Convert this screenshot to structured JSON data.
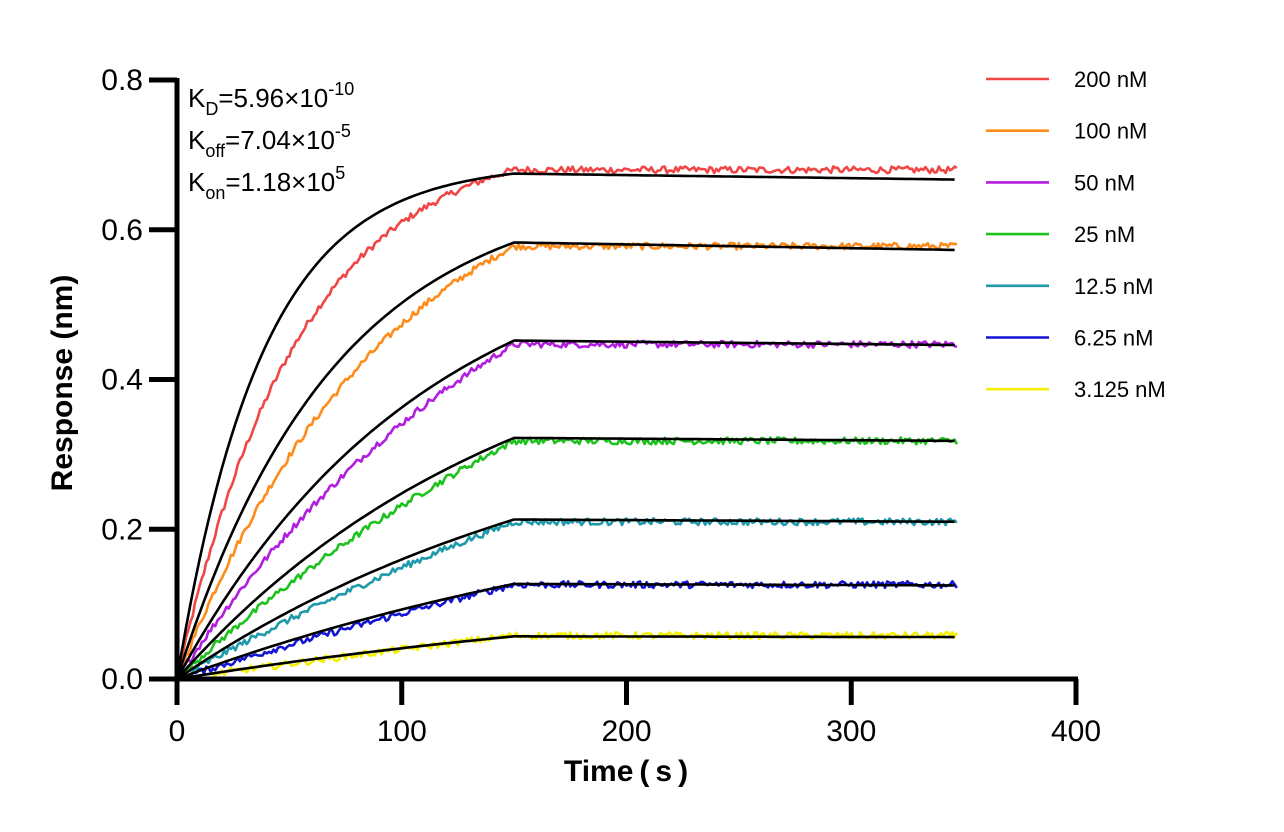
{
  "chart_data": {
    "type": "line",
    "xlabel": "Time ( s )",
    "ylabel": "Response (nm)",
    "xlim": [
      0,
      400
    ],
    "ylim": [
      0,
      0.8
    ],
    "x_ticks": [
      "0",
      "100",
      "200",
      "300",
      "400"
    ],
    "y_ticks": [
      "0.0",
      "0.2",
      "0.4",
      "0.6",
      "0.8"
    ],
    "grid": false,
    "legend_position": "top-right",
    "association_end_s": 150,
    "time_end_s": 347,
    "annotations": [
      {
        "base": "K",
        "sub": "D",
        "text": "=5.96×10",
        "sup": "-10"
      },
      {
        "base": "K",
        "sub": "off",
        "text": "=7.04×10",
        "sup": "-5"
      },
      {
        "base": "K",
        "sub": "on",
        "text": "=1.18×10",
        "sup": "5"
      }
    ],
    "series": [
      {
        "name": "200 nM",
        "color": "#f04646",
        "plateau": 0.68,
        "fit_plateau": 0.675,
        "tau": 55,
        "fit_tau": 38,
        "fit_end": 0.667
      },
      {
        "name": "100 nM",
        "color": "#ff8c1a",
        "plateau": 0.578,
        "fit_plateau": 0.583,
        "tau": 95,
        "fit_tau": 70,
        "fit_end": 0.573
      },
      {
        "name": "50 nM",
        "color": "#b21ee0",
        "plateau": 0.447,
        "fit_plateau": 0.452,
        "tau": 160,
        "fit_tau": 110,
        "fit_end": 0.446
      },
      {
        "name": "25 nM",
        "color": "#1ec21e",
        "plateau": 0.318,
        "fit_plateau": 0.322,
        "tau": 260,
        "fit_tau": 150,
        "fit_end": 0.318
      },
      {
        "name": "12.5 nM",
        "color": "#1e9aaa",
        "plateau": 0.21,
        "fit_plateau": 0.213,
        "tau": 380,
        "fit_tau": 190,
        "fit_end": 0.21
      },
      {
        "name": "6.25 nM",
        "color": "#1414d2",
        "plateau": 0.126,
        "fit_plateau": 0.127,
        "tau": 600,
        "fit_tau": 250,
        "fit_end": 0.125
      },
      {
        "name": "3.125 nM",
        "color": "#f5f000",
        "plateau": 0.058,
        "fit_plateau": 0.057,
        "tau": 900,
        "fit_tau": 300,
        "fit_end": 0.056
      }
    ]
  }
}
